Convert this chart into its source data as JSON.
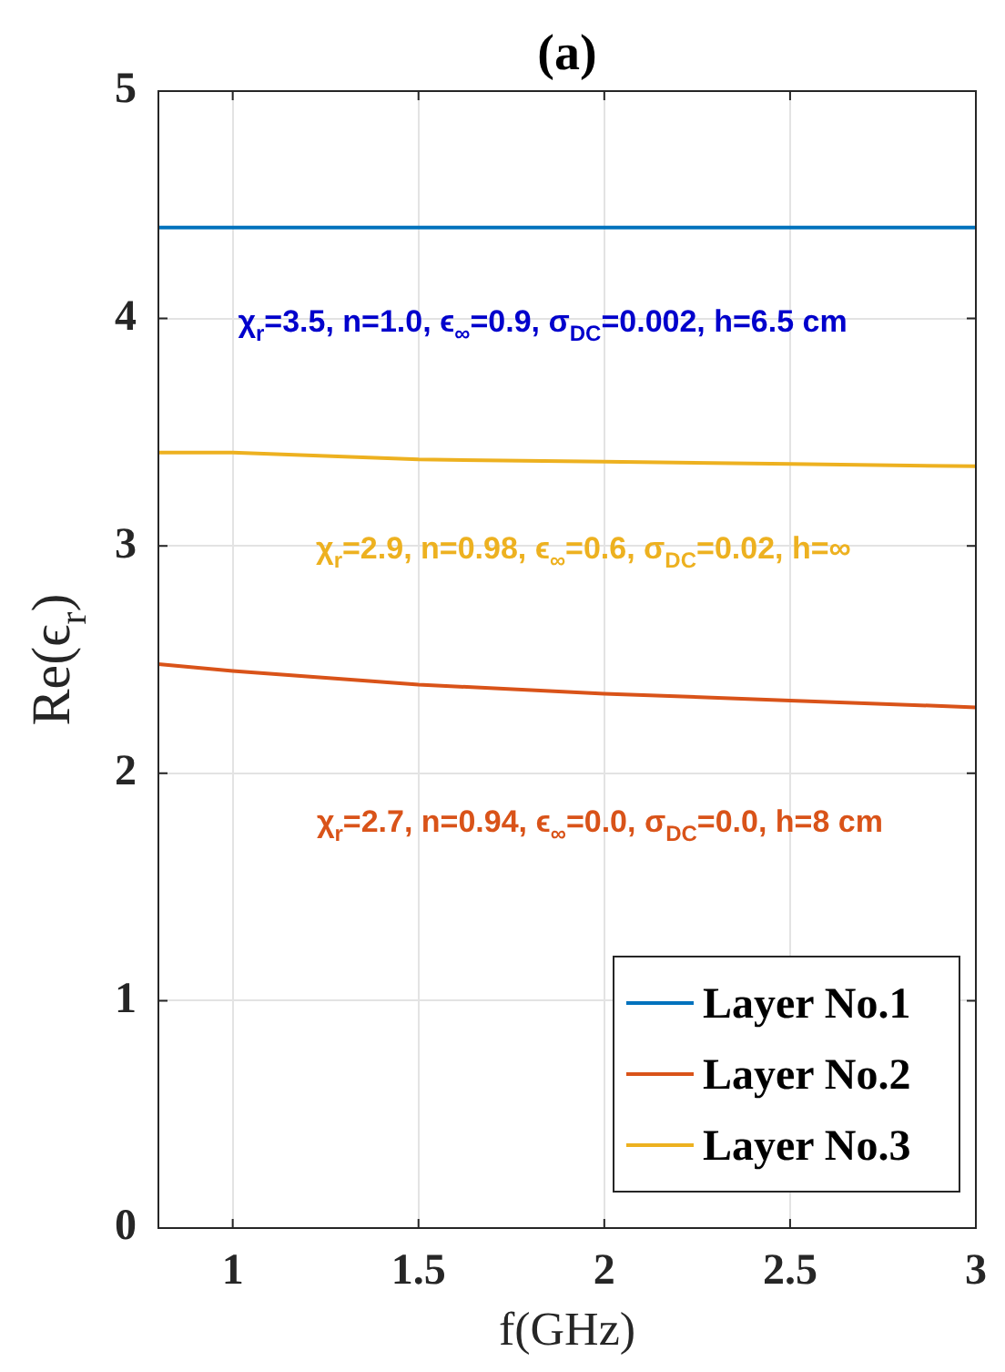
{
  "chart_data": {
    "type": "line",
    "title": "(a)",
    "xlabel": "f(GHz)",
    "ylabel": "Re(ϵ$_{r}$)",
    "x": [
      0.8,
      1,
      1.5,
      2,
      2.5,
      3
    ],
    "series": [
      {
        "name": "Layer No.1",
        "color": "#0072bd",
        "values": [
          4.4,
          4.4,
          4.4,
          4.4,
          4.4,
          4.4
        ]
      },
      {
        "name": "Layer No.2",
        "color": "#d95319",
        "values": [
          2.48,
          2.45,
          2.39,
          2.35,
          2.32,
          2.29
        ]
      },
      {
        "name": "Layer No.3",
        "color": "#edb120",
        "values": [
          3.41,
          3.41,
          3.38,
          3.37,
          3.36,
          3.35
        ]
      }
    ],
    "annotations": [
      "χ$_{r}$=3.5, n=1.0, ϵ$_{∞}$=0.9, σ$_{DC}$=0.002, h=6.5 cm",
      "χ$_{r}$=2.7, n=0.94, ϵ$_{∞}$=0.0, σ$_{DC}$=0.0, h=8 cm",
      "χ$_{r}$=2.9, n=0.98, ϵ$_{∞}$=0.6, σ$_{DC}$=0.02, h=∞"
    ],
    "xlim": [
      0.8,
      3
    ],
    "xticks": [
      1,
      1.5,
      2,
      2.5,
      3
    ],
    "ylim": [
      0,
      5
    ],
    "yticks": [
      0,
      1,
      2,
      3,
      4,
      5
    ],
    "grid": true,
    "legend": "bottom right",
    "marker": "none",
    "line_style": "solid"
  }
}
